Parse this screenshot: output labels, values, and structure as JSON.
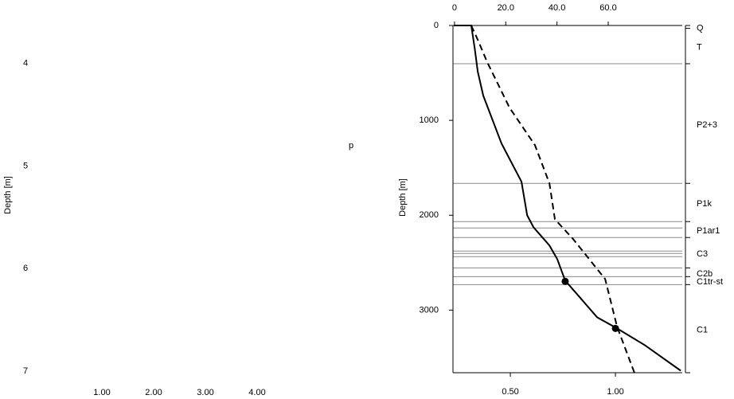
{
  "chart_data": [
    {
      "type": "line",
      "ylabel": "Depth [m]",
      "annotation": "p",
      "xlim": [
        0,
        5
      ],
      "xticks": [
        {
          "value": 1,
          "label": "1.00"
        },
        {
          "value": 2,
          "label": "2.00"
        },
        {
          "value": 3,
          "label": "3.00"
        },
        {
          "value": 4,
          "label": "4.00"
        }
      ],
      "ylim": [
        3.6,
        7
      ],
      "yticks": [
        4,
        5,
        6,
        7
      ]
    },
    {
      "type": "line",
      "ylabel": "Depth [m]",
      "y_inverted": true,
      "xlim": [
        0.227,
        1.318
      ],
      "xticks": [
        {
          "value": 0.5,
          "label": "0.50"
        },
        {
          "value": 1,
          "label": "1.00"
        }
      ],
      "x2lim": [
        -0.6,
        88.9
      ],
      "x2ticks": [
        0,
        {
          "value": 20,
          "label": "20.0"
        },
        {
          "value": 40,
          "label": "40.0"
        },
        {
          "value": 60,
          "label": "60.0"
        }
      ],
      "ylim": [
        0,
        3660
      ],
      "yticks": [
        0,
        1000,
        2000,
        3000
      ],
      "series": [
        {
          "color": "#000000",
          "dashed": false,
          "x": [
            0.231,
            0.314,
            0.33,
            0.345,
            0.371,
            0.458,
            0.553,
            0.58,
            0.61,
            0.686,
            0.723,
            0.761,
            0.837,
            0.913,
            1.008,
            1.14,
            1.311
          ],
          "y": [
            0,
            0,
            235,
            487,
            739,
            1244,
            1647,
            2000,
            2126,
            2319,
            2462,
            2689,
            2882,
            3076,
            3193,
            3370,
            3639
          ]
        },
        {
          "color": "#000000",
          "dashed": true,
          "x": [
            0.314,
            0.345,
            0.39,
            0.496,
            0.617,
            0.686,
            0.712,
            0.799,
            0.951,
            1.008,
            1.091
          ],
          "y": [
            0,
            151,
            387,
            866,
            1261,
            1664,
            2042,
            2252,
            2672,
            3176,
            3664
          ]
        }
      ],
      "points": {
        "x": [
          0.761,
          1.0
        ],
        "y": [
          2697,
          3193
        ]
      },
      "boundaries": [
        403,
        1664,
        2067,
        2134,
        2235,
        2378,
        2403,
        2437,
        2555,
        2647,
        2731
      ],
      "layers": [
        {
          "name": "Q",
          "base": 30
        },
        {
          "name": "T",
          "base": 403
        },
        {
          "name": "P2+3",
          "base": 1664
        },
        {
          "name": "P1k",
          "base": 2067
        },
        {
          "name": "P1ar1",
          "base": 2235
        },
        {
          "name": "C3",
          "base": 2555
        },
        {
          "name": "C2b",
          "base": 2647
        },
        {
          "name": "C1tr-st",
          "base": 2731
        },
        {
          "name": "C1",
          "base": 3660
        }
      ]
    }
  ]
}
